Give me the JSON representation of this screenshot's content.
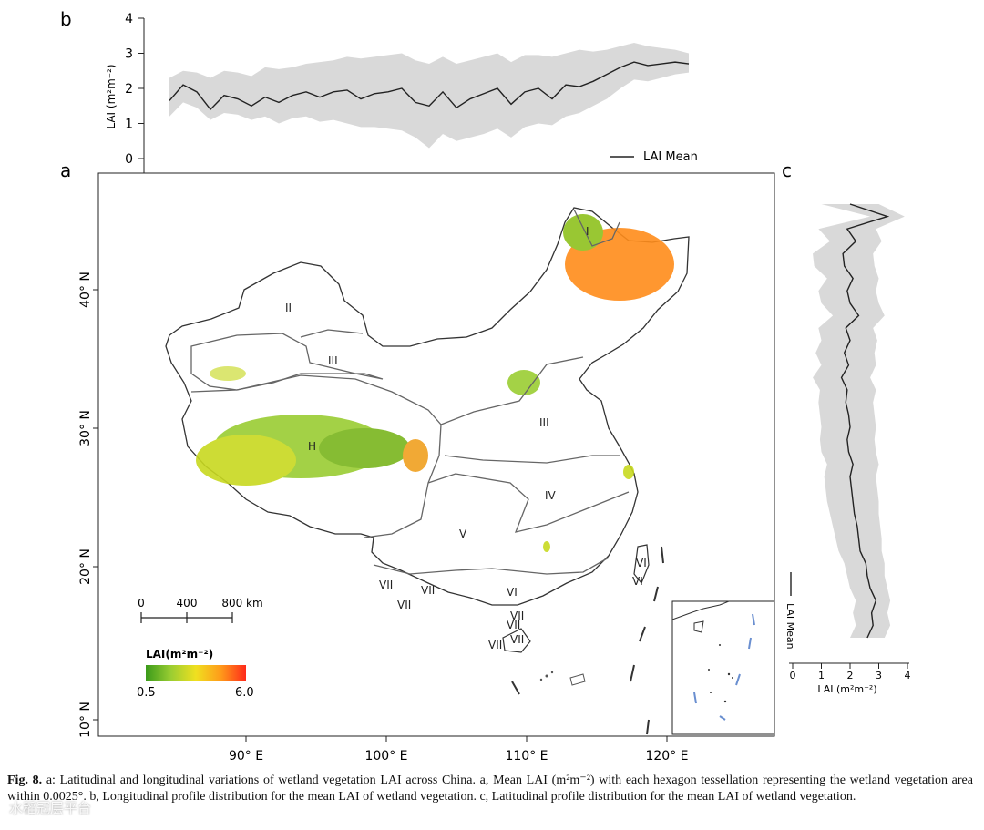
{
  "figure": {
    "panel_a_label": "a",
    "panel_b_label": "b",
    "panel_c_label": "c"
  },
  "chart_data": [
    {
      "panel": "b",
      "type": "line",
      "title": "",
      "xlabel": "",
      "ylabel": "LAI (m²m⁻²)",
      "ylim": [
        0,
        4
      ],
      "yticks": [
        0,
        1,
        2,
        3,
        4
      ],
      "legend": "LAI Mean",
      "x_lon": [
        84,
        85,
        86,
        87,
        88,
        89,
        90,
        91,
        92,
        93,
        94,
        95,
        96,
        97,
        98,
        99,
        100,
        101,
        102,
        103,
        104,
        105,
        106,
        107,
        108,
        109,
        110,
        111,
        112,
        113,
        114,
        115,
        116,
        117,
        118,
        119,
        120,
        121,
        122
      ],
      "mean": [
        1.65,
        2.1,
        1.9,
        1.4,
        1.8,
        1.7,
        1.5,
        1.75,
        1.6,
        1.8,
        1.9,
        1.75,
        1.9,
        1.95,
        1.7,
        1.85,
        1.9,
        2.0,
        1.6,
        1.5,
        1.9,
        1.45,
        1.7,
        1.85,
        2.0,
        1.55,
        1.9,
        2.0,
        1.7,
        2.1,
        2.05,
        2.2,
        2.4,
        2.6,
        2.75,
        2.65,
        2.7,
        2.75,
        2.7
      ],
      "upper": [
        2.3,
        2.5,
        2.45,
        2.3,
        2.5,
        2.45,
        2.35,
        2.6,
        2.55,
        2.6,
        2.7,
        2.75,
        2.8,
        2.9,
        2.85,
        2.9,
        2.95,
        3.0,
        2.8,
        2.7,
        2.9,
        2.7,
        2.8,
        2.9,
        3.0,
        2.75,
        2.95,
        2.95,
        2.9,
        3.0,
        3.1,
        3.05,
        3.1,
        3.2,
        3.3,
        3.2,
        3.15,
        3.1,
        3.0
      ],
      "lower": [
        1.2,
        1.6,
        1.45,
        1.1,
        1.3,
        1.25,
        1.1,
        1.2,
        1.0,
        1.15,
        1.2,
        1.05,
        1.1,
        1.0,
        0.9,
        0.9,
        0.85,
        0.8,
        0.6,
        0.3,
        0.7,
        0.5,
        0.6,
        0.7,
        0.85,
        0.6,
        0.9,
        1.0,
        0.95,
        1.2,
        1.3,
        1.5,
        1.7,
        2.0,
        2.25,
        2.2,
        2.3,
        2.4,
        2.45
      ]
    },
    {
      "panel": "c",
      "type": "line",
      "xlabel": "LAI (m²m⁻²)",
      "xlim": [
        0,
        4
      ],
      "xticks": [
        0,
        1,
        2,
        3,
        4
      ],
      "legend": "LAI Mean",
      "y_lat": [
        18,
        19,
        20,
        21,
        22,
        23,
        24,
        25,
        26,
        27,
        28,
        29,
        30,
        31,
        32,
        33,
        34,
        35,
        36,
        37,
        38,
        39,
        40,
        41,
        42,
        43,
        44,
        45,
        46,
        47,
        48,
        49,
        50,
        51,
        52,
        53
      ],
      "mean": [
        2.6,
        2.8,
        2.75,
        2.9,
        2.7,
        2.6,
        2.55,
        2.35,
        2.3,
        2.25,
        2.15,
        2.1,
        2.05,
        2.0,
        2.1,
        1.95,
        1.9,
        2.0,
        1.95,
        1.85,
        1.9,
        1.7,
        1.95,
        1.8,
        2.0,
        1.85,
        2.3,
        2.0,
        1.9,
        2.1,
        1.8,
        1.75,
        2.2,
        1.9,
        3.3,
        2.0
      ],
      "upper": [
        3.2,
        3.4,
        3.3,
        3.4,
        3.3,
        3.2,
        3.2,
        3.1,
        3.1,
        3.05,
        3.0,
        3.0,
        2.95,
        2.9,
        3.0,
        2.9,
        2.85,
        2.9,
        2.85,
        2.8,
        2.9,
        2.7,
        2.9,
        2.85,
        2.95,
        2.8,
        3.2,
        3.0,
        2.9,
        3.0,
        2.85,
        2.8,
        3.1,
        2.9,
        3.9,
        3.0
      ],
      "lower": [
        2.0,
        2.2,
        2.1,
        2.2,
        2.0,
        1.9,
        1.8,
        1.6,
        1.5,
        1.4,
        1.3,
        1.2,
        1.15,
        1.1,
        1.2,
        1.0,
        0.95,
        1.0,
        0.95,
        0.9,
        0.95,
        0.7,
        1.0,
        0.8,
        1.0,
        0.9,
        1.4,
        1.0,
        0.9,
        1.2,
        0.75,
        0.7,
        1.3,
        0.9,
        2.7,
        1.0
      ]
    },
    {
      "panel": "a",
      "type": "map",
      "x_ticks": [
        "90° E",
        "100° E",
        "110° E",
        "120° E"
      ],
      "y_ticks": [
        "40° N",
        "30° N",
        "20° N",
        "10° N"
      ],
      "regions": [
        {
          "label": "I"
        },
        {
          "label": "II"
        },
        {
          "label": "III"
        },
        {
          "label": "III"
        },
        {
          "label": "H"
        },
        {
          "label": "IV"
        },
        {
          "label": "V"
        },
        {
          "label": "VI"
        },
        {
          "label": "VI"
        },
        {
          "label": "VI"
        },
        {
          "label": "VII"
        },
        {
          "label": "VII"
        },
        {
          "label": "VII"
        },
        {
          "label": "VII"
        },
        {
          "label": "VII"
        },
        {
          "label": "VII"
        },
        {
          "label": "VII"
        }
      ],
      "scale_bar": {
        "ticks": [
          "0",
          "400",
          "800 km"
        ]
      },
      "colorbar": {
        "title": "LAI(m²m⁻²)",
        "min_label": "0.5",
        "max_label": "6.0",
        "colors": [
          "#3a9a1a",
          "#9acd32",
          "#f0e020",
          "#ff9a1a",
          "#ff2a1a"
        ]
      }
    }
  ],
  "caption": {
    "fig_label": "Fig. 8.",
    "text": "a: Latitudinal and longitudinal variations of wetland vegetation LAI across China. a, Mean LAI (m²m⁻²) with each hexagon tessellation representing the wetland vegetation area within 0.0025°. b, Longitudinal profile distribution for the mean LAI of wetland vegetation. c, Latitudinal profile distribution for the mean LAI of wetland vegetation."
  },
  "watermark": "水稻冠层平台"
}
